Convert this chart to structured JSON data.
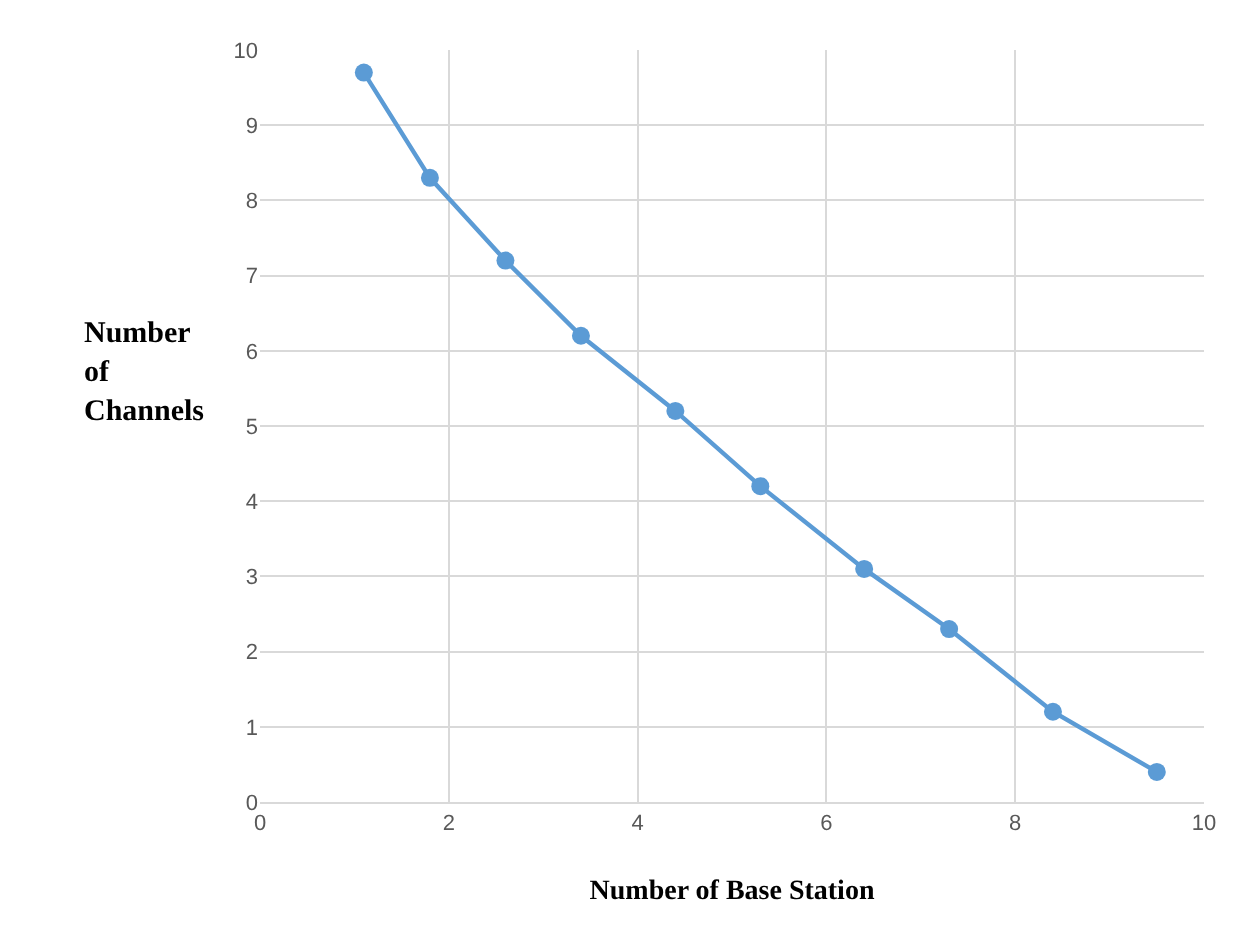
{
  "chart_data": {
    "type": "line",
    "xlabel": "Number of Base Station",
    "ylabel": "Number of Channels",
    "x": [
      1.1,
      1.8,
      2.6,
      3.4,
      4.4,
      5.3,
      6.4,
      7.3,
      8.4,
      9.5
    ],
    "series": [
      {
        "color": "#5b9bd5",
        "values": [
          9.7,
          8.3,
          7.2,
          6.2,
          5.2,
          4.2,
          3.1,
          2.3,
          1.2,
          0.4
        ]
      }
    ],
    "xlim": [
      0,
      10
    ],
    "xticks": [
      0,
      2,
      4,
      6,
      8,
      10
    ],
    "ylim": [
      0,
      10
    ],
    "yticks": [
      0,
      1,
      2,
      3,
      4,
      5,
      6,
      7,
      8,
      9,
      10
    ],
    "grid": true,
    "marker": "circle",
    "line_style": "solid",
    "legend": false
  }
}
